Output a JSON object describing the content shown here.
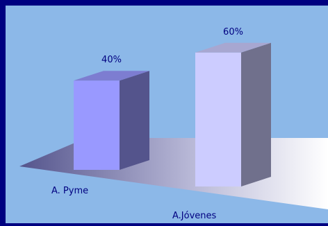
{
  "chart_data": {
    "type": "bar",
    "categories": [
      "A. Pyme",
      "A.Jóvenes"
    ],
    "values": [
      40,
      60
    ],
    "value_labels": [
      "40%",
      "60%"
    ],
    "unit": "%",
    "ylim": [
      0,
      60
    ],
    "grid": false,
    "legend": "none",
    "style": "3d-column",
    "colors": {
      "background": "#000080",
      "plot_area": "#8CB8E8",
      "series": [
        "#9999FF",
        "#CCCCFF"
      ],
      "text": "#000080"
    }
  }
}
